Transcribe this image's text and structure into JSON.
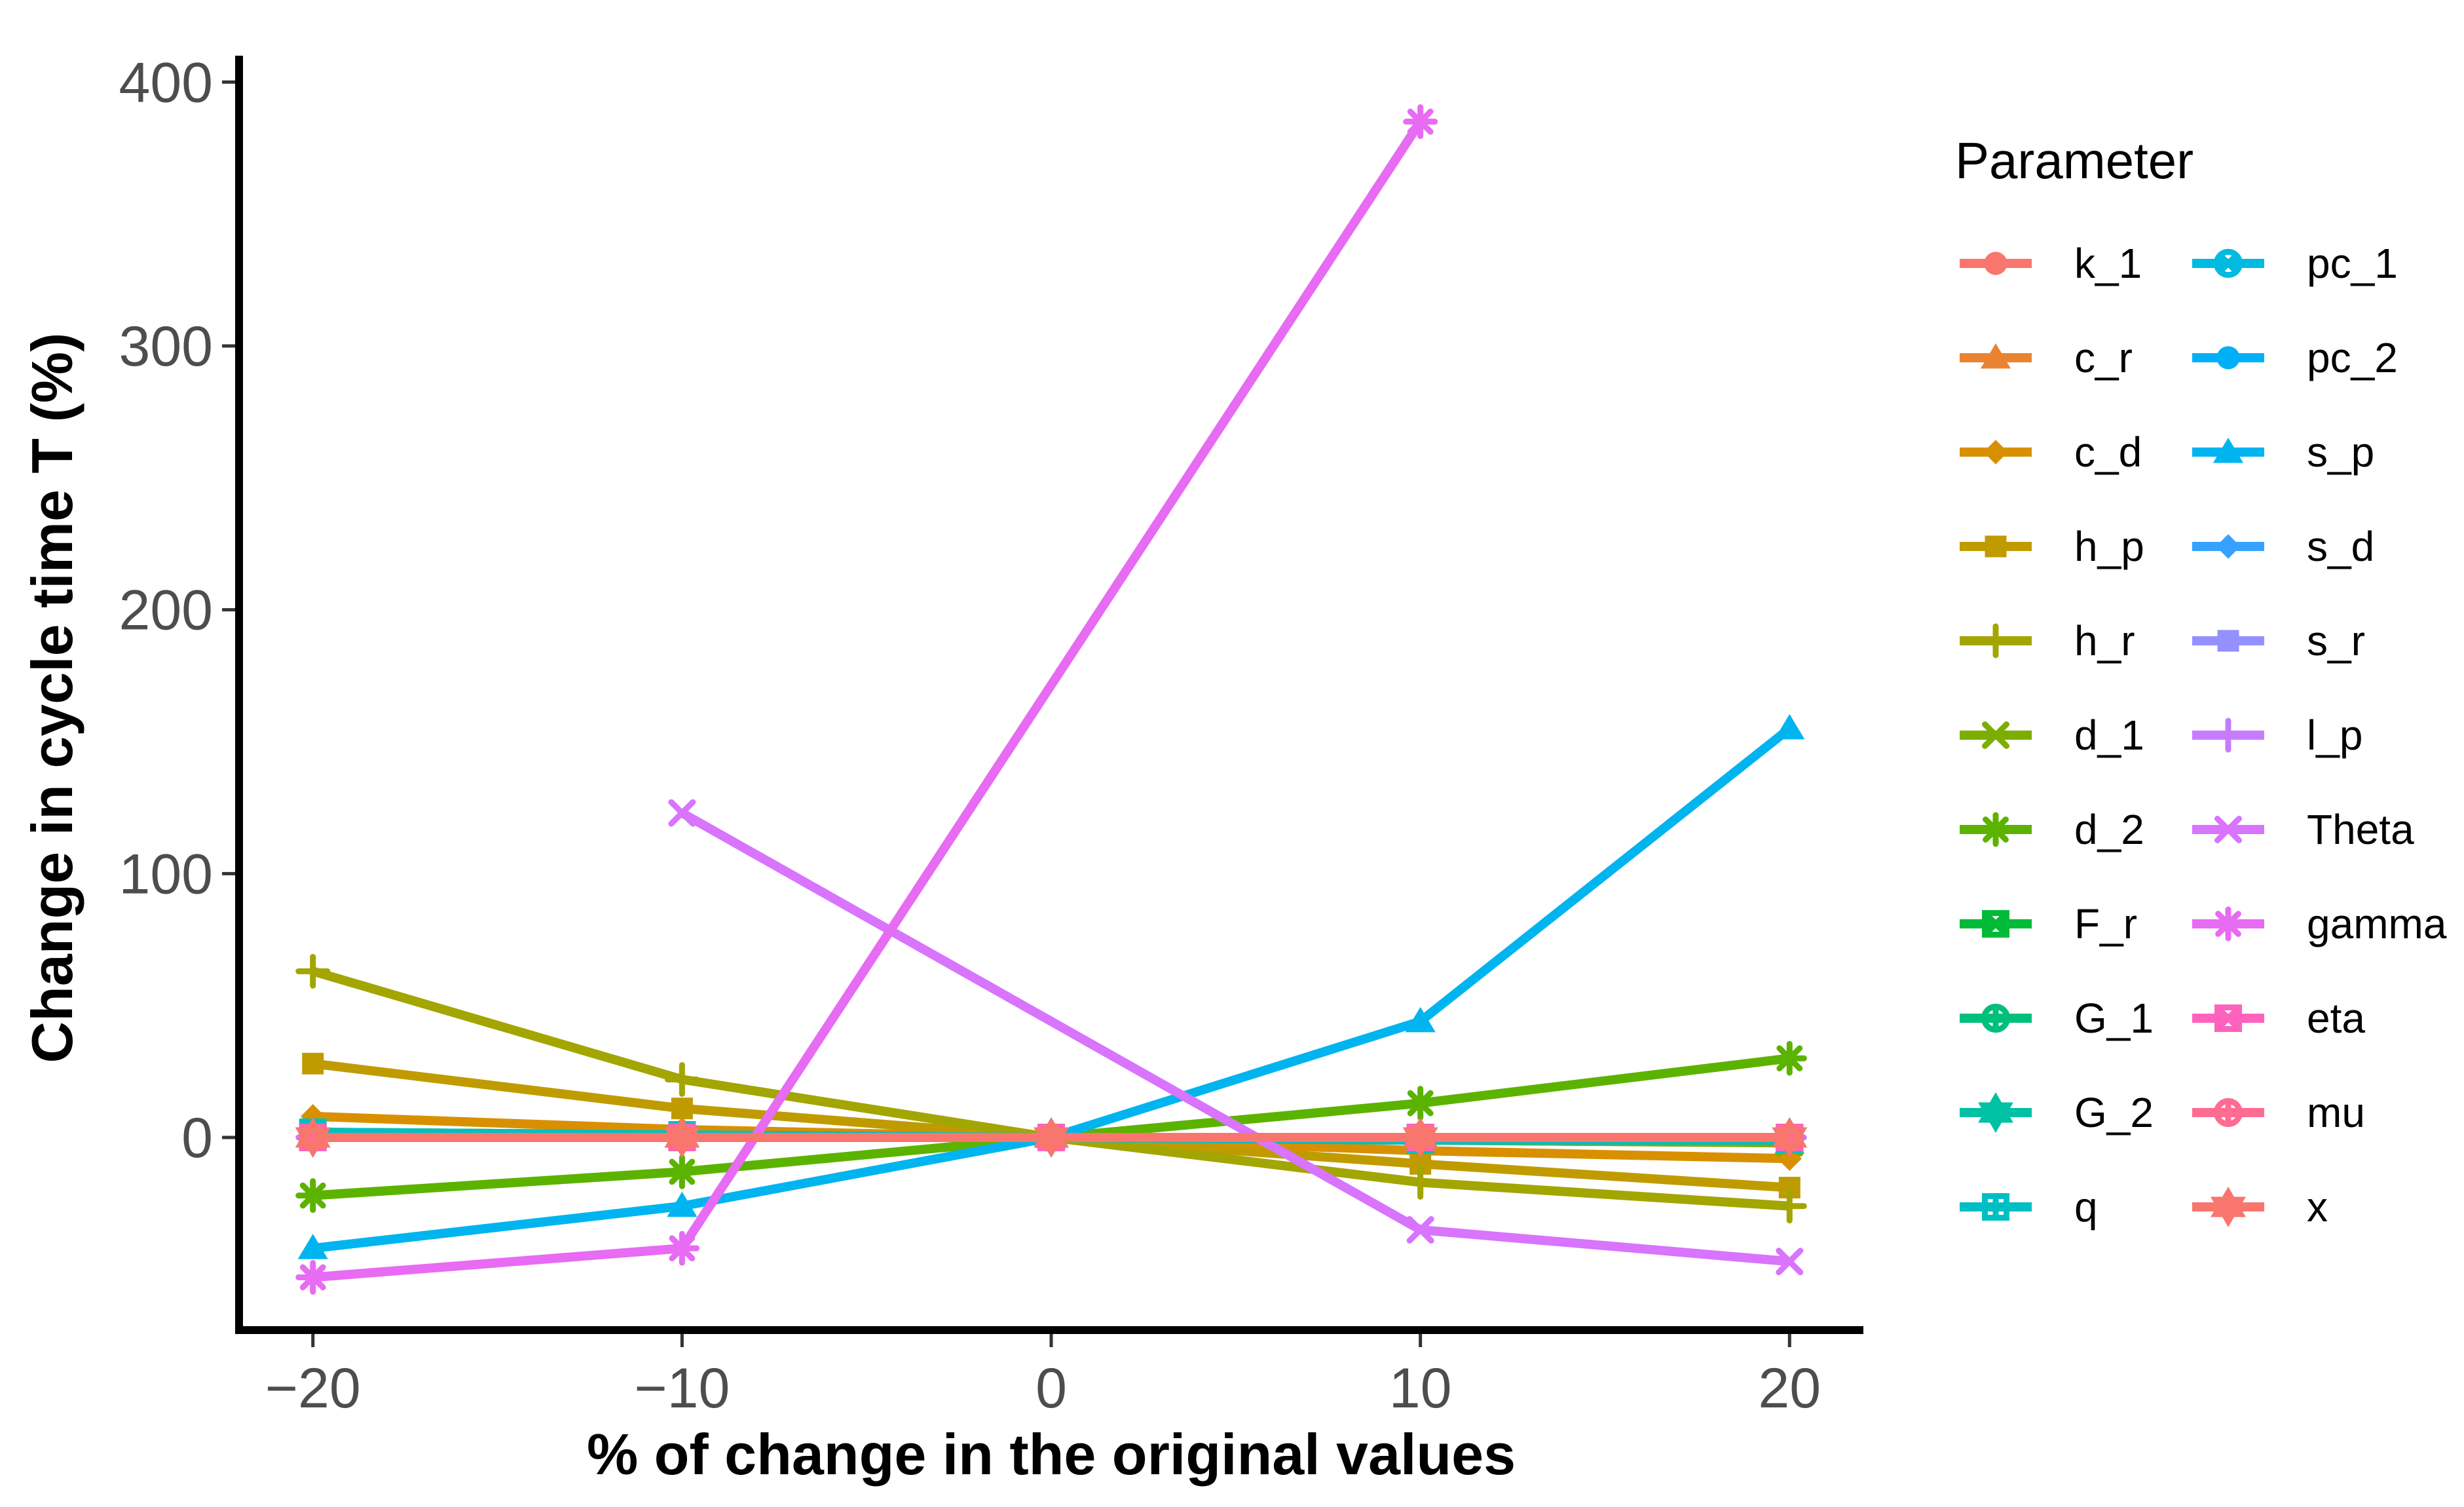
{
  "chart_data": {
    "type": "line",
    "xlabel": "% of change in the original values",
    "ylabel": "Change in cycle time T (%)",
    "xlim": [
      -22,
      22
    ],
    "ylim": [
      -73,
      410
    ],
    "xticks": [
      -20,
      -10,
      0,
      10,
      20
    ],
    "xtick_labels": [
      "−20",
      "−10",
      "0",
      "10",
      "20"
    ],
    "yticks": [
      0,
      100,
      200,
      300,
      400
    ],
    "ytick_labels": [
      "0",
      "100",
      "200",
      "300",
      "400"
    ],
    "grid": false,
    "legend": {
      "title": "Parameter",
      "placement": "right",
      "columns": 2
    },
    "x": [
      -20,
      -10,
      0,
      10,
      20
    ],
    "series": [
      {
        "name": "k_1",
        "color": "#F8766D",
        "marker": "circle",
        "values": [
          1,
          0.5,
          0,
          -0.5,
          -1
        ]
      },
      {
        "name": "c_r",
        "color": "#EA8331",
        "marker": "triangle",
        "values": [
          2,
          1,
          0,
          -1,
          -2
        ]
      },
      {
        "name": "c_d",
        "color": "#D89000",
        "marker": "diamond",
        "values": [
          8,
          3,
          0,
          -5,
          -8
        ]
      },
      {
        "name": "h_p",
        "color": "#C09B00",
        "marker": "square",
        "values": [
          28,
          11,
          0,
          -10,
          -19
        ]
      },
      {
        "name": "h_r",
        "color": "#A3A500",
        "marker": "plus",
        "values": [
          63,
          22,
          0,
          -17,
          -26
        ]
      },
      {
        "name": "d_1",
        "color": "#7CAE00",
        "marker": "x",
        "values": [
          2,
          1,
          0,
          -1,
          -2
        ]
      },
      {
        "name": "d_2",
        "color": "#5BB300",
        "marker": "asterisk",
        "values": [
          -22,
          -13,
          0,
          13,
          30
        ]
      },
      {
        "name": "F_r",
        "color": "#00BA38",
        "marker": "square-x",
        "values": [
          0,
          0,
          0,
          0,
          0
        ]
      },
      {
        "name": "G_1",
        "color": "#00BF7D",
        "marker": "circle-plus",
        "values": [
          0,
          0,
          0,
          0,
          0
        ]
      },
      {
        "name": "G_2",
        "color": "#00C1A3",
        "marker": "star-of-david",
        "values": [
          0,
          0,
          0,
          0,
          0
        ]
      },
      {
        "name": "q",
        "color": "#00BFC4",
        "marker": "square-plus",
        "values": [
          2,
          1,
          0,
          -1,
          -1
        ]
      },
      {
        "name": "pc_1",
        "color": "#00BAE0",
        "marker": "circle-x",
        "values": [
          0,
          0,
          0,
          0,
          0
        ]
      },
      {
        "name": "pc_2",
        "color": "#00B0F6",
        "marker": "circle",
        "values": [
          0,
          0,
          0,
          0,
          0
        ]
      },
      {
        "name": "s_p",
        "color": "#00B4EF",
        "marker": "triangle",
        "values": [
          -42,
          -26,
          0,
          44,
          155
        ]
      },
      {
        "name": "s_d",
        "color": "#35A2FF",
        "marker": "diamond",
        "values": [
          0,
          0,
          0,
          0,
          0
        ]
      },
      {
        "name": "s_r",
        "color": "#9590FF",
        "marker": "square",
        "values": [
          0,
          0,
          0,
          0,
          0
        ]
      },
      {
        "name": "l_p",
        "color": "#C77CFF",
        "marker": "plus",
        "values": [
          0,
          0,
          0,
          0,
          0
        ]
      },
      {
        "name": "Theta",
        "color": "#D874FD",
        "marker": "x",
        "values": [
          null,
          123,
          null,
          -35,
          -47
        ]
      },
      {
        "name": "gamma",
        "color": "#E76BF3",
        "marker": "asterisk",
        "values": [
          -53,
          -42,
          null,
          385,
          null
        ]
      },
      {
        "name": "eta",
        "color": "#FF62BC",
        "marker": "square-x",
        "values": [
          0,
          0,
          0,
          0,
          0
        ]
      },
      {
        "name": "mu",
        "color": "#FF6C91",
        "marker": "circle-plus",
        "values": [
          0,
          0,
          0,
          0,
          0
        ]
      },
      {
        "name": "x",
        "color": "#F8766D",
        "marker": "star-of-david",
        "values": [
          0,
          0,
          0,
          0,
          0
        ]
      }
    ]
  }
}
